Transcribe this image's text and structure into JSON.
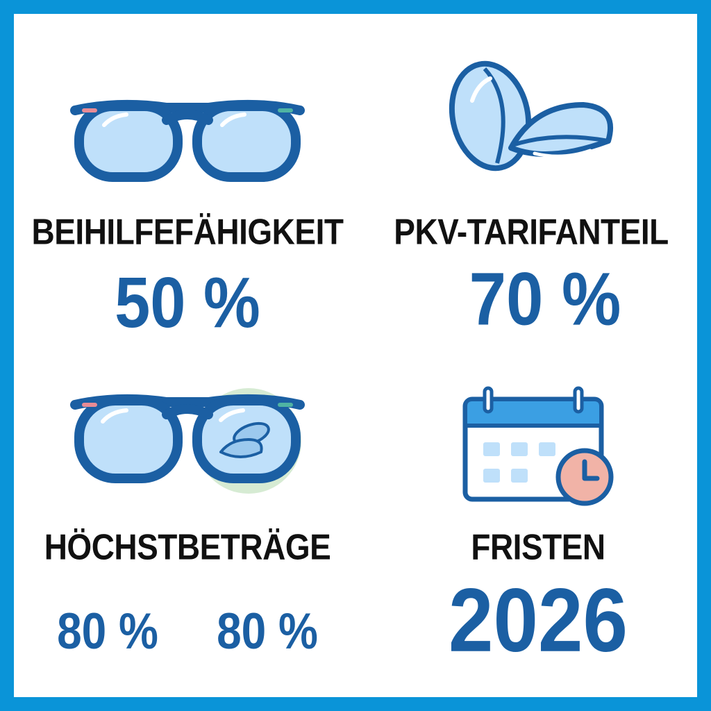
{
  "colors": {
    "frame": "#0a94d8",
    "accent": "#1b5fa3",
    "lens": "#bfe0fa",
    "label": "#111111"
  },
  "tiles": [
    {
      "icon": "eyeglasses-icon",
      "label": "BEIHILFEFÄHIGKEIT",
      "value": "50 %"
    },
    {
      "icon": "contact-lenses-icon",
      "label": "PKV-TARIFANTEIL",
      "value": "70 %"
    },
    {
      "icon": "glasses-with-contact-lenses-icon",
      "label": "HÖCHSTBETRÄGE",
      "values": [
        "80 %",
        "80 %"
      ]
    },
    {
      "icon": "calendar-clock-icon",
      "label": "FRISTEN",
      "value": "2026"
    }
  ]
}
